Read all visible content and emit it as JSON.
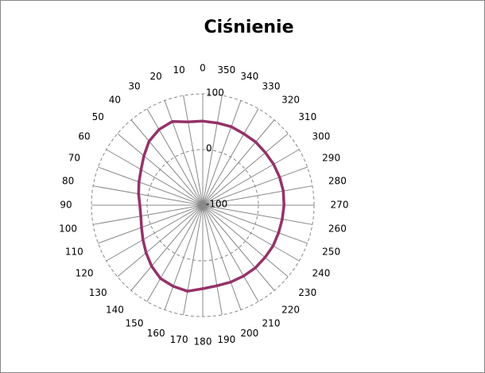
{
  "chart_data": {
    "type": "radar",
    "title": "Ciśnienie",
    "categories": [
      "0",
      "10",
      "20",
      "30",
      "40",
      "50",
      "60",
      "70",
      "80",
      "90",
      "100",
      "110",
      "120",
      "130",
      "140",
      "150",
      "160",
      "170",
      "180",
      "190",
      "200",
      "210",
      "220",
      "230",
      "240",
      "250",
      "260",
      "270",
      "280",
      "290",
      "300",
      "310",
      "320",
      "330",
      "340",
      "350"
    ],
    "series": [
      {
        "name": "Ciśnienie",
        "color": "#953268",
        "values": [
          51,
          52,
          60,
          57,
          50,
          38,
          28,
          22,
          17,
          13,
          13,
          17,
          24,
          33,
          43,
          52,
          55,
          57,
          50,
          47,
          47,
          47,
          47,
          46,
          46,
          45,
          45,
          46,
          47,
          47,
          47,
          47,
          48,
          48,
          50,
          50
        ]
      }
    ],
    "rlim": [
      -100,
      100
    ],
    "rticks": [
      -100,
      0,
      100
    ],
    "grid": true
  }
}
